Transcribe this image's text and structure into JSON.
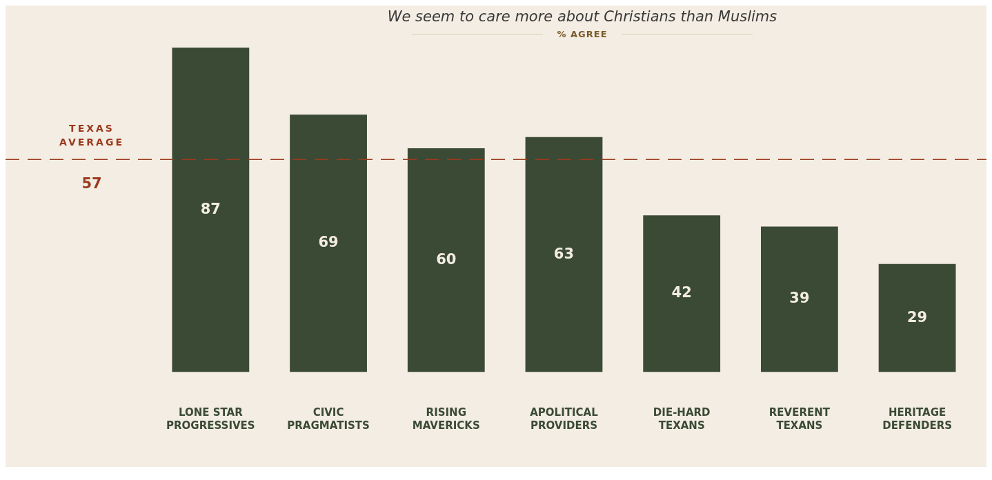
{
  "chart_data": {
    "type": "bar",
    "title": "We seem to care more about Christians than Muslims",
    "subtitle": "% AGREE",
    "categories": [
      "LONE STAR PROGRESSIVES",
      "CIVIC PRAGMATISTS",
      "RISING MAVERICKS",
      "APOLITICAL PROVIDERS",
      "DIE-HARD TEXANS",
      "REVERENT TEXANS",
      "HERITAGE DEFENDERS"
    ],
    "values": [
      87,
      69,
      60,
      63,
      42,
      39,
      29
    ],
    "color": "#3b4a35",
    "data_labels": true,
    "ref_lines": [
      {
        "axis": "y",
        "value": 57,
        "label": "TEXAS AVERAGE",
        "color": "#9b3a1f",
        "line_style": "dashed"
      }
    ],
    "annotations": [
      {
        "text": "57",
        "y": 57
      }
    ],
    "legend": false
  }
}
